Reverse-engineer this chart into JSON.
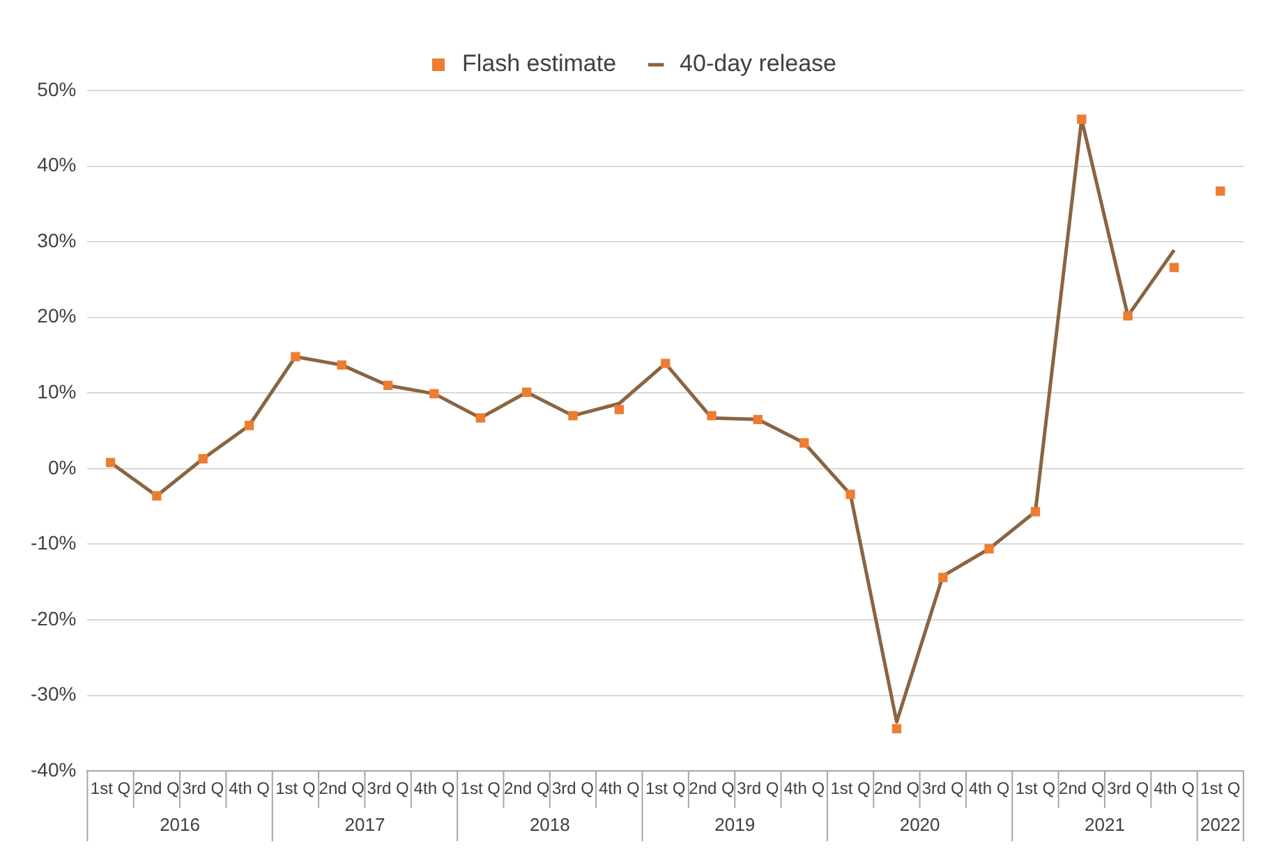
{
  "chart_data": {
    "type": "line",
    "categories": [
      "1st Q",
      "2nd Q",
      "3rd Q",
      "4th Q",
      "1st Q",
      "2nd Q",
      "3rd Q",
      "4th Q",
      "1st Q",
      "2nd Q",
      "3rd Q",
      "4th Q",
      "1st Q",
      "2nd Q",
      "3rd Q",
      "4th Q",
      "1st Q",
      "2nd Q",
      "3rd Q",
      "4th Q",
      "1st Q",
      "2nd Q",
      "3rd Q",
      "4th Q",
      "1st Q"
    ],
    "annotations": [
      "2016",
      "2017",
      "2018",
      "2019",
      "2020",
      "2021",
      "2022"
    ],
    "series": [
      {
        "name": "Flash estimate",
        "type": "scatter",
        "marker": "square",
        "color": "#ed7d31",
        "values": [
          0.8,
          -3.6,
          1.3,
          5.7,
          14.8,
          13.7,
          11.0,
          9.9,
          6.7,
          10.1,
          7.0,
          7.8,
          13.9,
          7.0,
          6.5,
          3.4,
          -3.4,
          -34.4,
          -14.4,
          -10.6,
          -5.7,
          46.2,
          20.2,
          26.6,
          36.7
        ]
      },
      {
        "name": "40-day release",
        "type": "line",
        "marker": "none",
        "color": "#8b6440",
        "values": [
          0.8,
          -3.6,
          1.3,
          5.7,
          14.8,
          13.7,
          11.0,
          9.9,
          6.7,
          10.1,
          7.0,
          8.6,
          13.9,
          6.7,
          6.5,
          3.4,
          -3.4,
          -33.5,
          -14.2,
          -10.6,
          -5.7,
          46.2,
          20.2,
          28.9,
          null
        ]
      }
    ],
    "ylim": [
      -40,
      50
    ],
    "yticks": [
      {
        "value": -40,
        "label": "-40%"
      },
      {
        "value": -30,
        "label": "-30%"
      },
      {
        "value": -20,
        "label": "-20%"
      },
      {
        "value": -10,
        "label": "-10%"
      },
      {
        "value": 0,
        "label": "0%"
      },
      {
        "value": 10,
        "label": "10%"
      },
      {
        "value": 20,
        "label": "20%"
      },
      {
        "value": 30,
        "label": "30%"
      },
      {
        "value": 40,
        "label": "40%"
      },
      {
        "value": 50,
        "label": "50%"
      }
    ],
    "grid": "y",
    "legend": "top"
  }
}
